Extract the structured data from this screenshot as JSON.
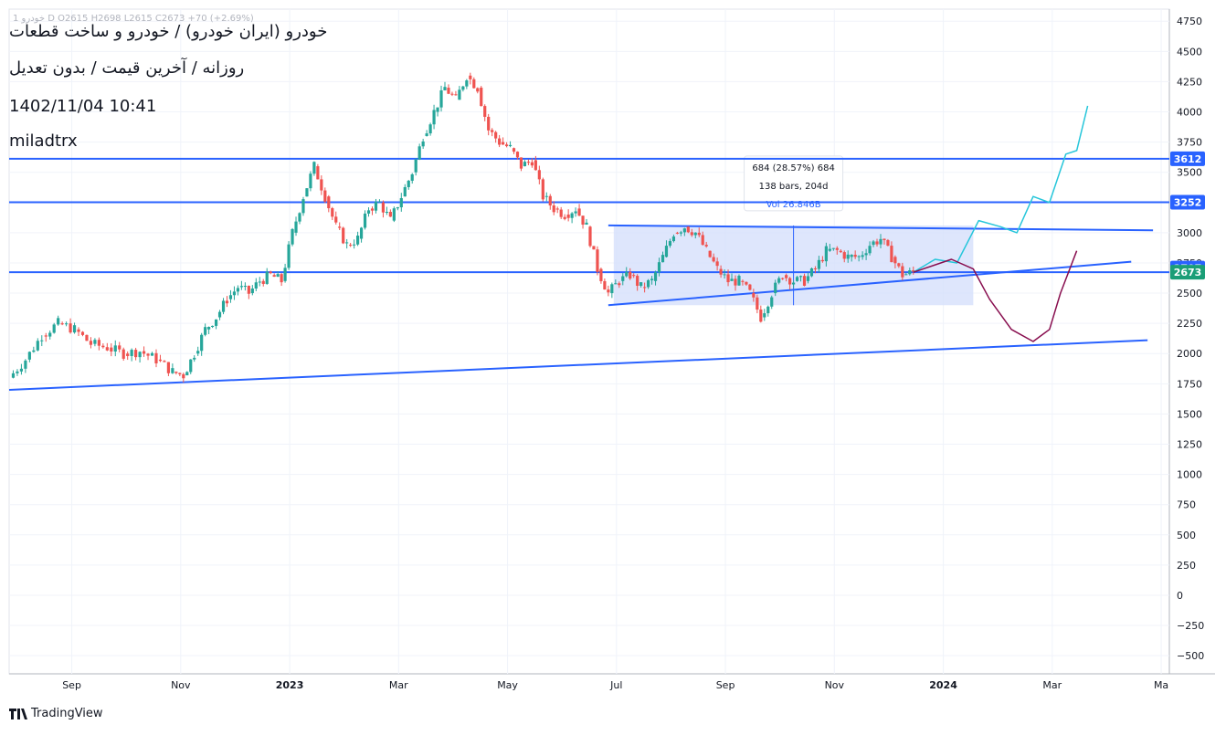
{
  "header": {
    "symbol_line": "خودرو (ایران خودرو) / خودرو و ساخت قطعات",
    "sub_line": "روزانه / آخرین قیمت / بدون تعدیل",
    "date": "1402/11/04 10:41",
    "author": "miladtrx",
    "ohlc": "1 خودرو‌ D  O2615  H2698  L2615  C2673  +70 (+2.69%)"
  },
  "footer": {
    "brand": "TradingView"
  },
  "colors": {
    "up": "#26a69a",
    "down": "#ef5350",
    "level_line": "#2962ff",
    "box_fill": "#d6e0fb",
    "forecast_up": "#26c6da",
    "forecast_down": "#880e4f",
    "price_label": "#2962ff",
    "last_price_label": "#1b9e77"
  },
  "chart_data": {
    "type": "candlestick",
    "title": "",
    "xlabel": "",
    "ylabel": "",
    "ylim": [
      -650,
      4850
    ],
    "y_ticks": [
      "4750",
      "4500",
      "4250",
      "4000",
      "3750",
      "3500",
      "3250",
      "3000",
      "2750",
      "2500",
      "2250",
      "2000",
      "1750",
      "1500",
      "1250",
      "1000",
      "750",
      "500",
      "250",
      "0",
      "−250",
      "−500"
    ],
    "y_tick_values": [
      4750,
      4500,
      4250,
      4000,
      3750,
      3500,
      3250,
      3000,
      2750,
      2500,
      2250,
      2000,
      1750,
      1500,
      1250,
      1000,
      750,
      500,
      250,
      0,
      -250,
      -500
    ],
    "x_ticks": [
      "Sep",
      "Nov",
      "2023",
      "Mar",
      "May",
      "Jul",
      "Sep",
      "Nov",
      "2024",
      "Mar",
      "Ma"
    ],
    "x_tick_bold": [
      false,
      false,
      true,
      false,
      false,
      false,
      false,
      false,
      true,
      false,
      false
    ],
    "x_tick_month_index": [
      1,
      3,
      5,
      7,
      9,
      11,
      13,
      15,
      17,
      19,
      21
    ],
    "x_range_months": [
      0,
      21.3
    ],
    "price_series": [
      [
        0,
        1800
      ],
      [
        0.3,
        1950
      ],
      [
        0.6,
        2150
      ],
      [
        0.9,
        2250
      ],
      [
        1.2,
        2200
      ],
      [
        1.5,
        2080
      ],
      [
        1.8,
        2050
      ],
      [
        2.1,
        2000
      ],
      [
        2.4,
        2020
      ],
      [
        2.7,
        1950
      ],
      [
        3.0,
        1850
      ],
      [
        3.2,
        1820
      ],
      [
        3.4,
        2000
      ],
      [
        3.6,
        2200
      ],
      [
        3.8,
        2300
      ],
      [
        4.0,
        2450
      ],
      [
        4.2,
        2550
      ],
      [
        4.4,
        2500
      ],
      [
        4.6,
        2600
      ],
      [
        4.8,
        2650
      ],
      [
        5.0,
        2600
      ],
      [
        5.2,
        3000
      ],
      [
        5.4,
        3300
      ],
      [
        5.6,
        3550
      ],
      [
        5.8,
        3300
      ],
      [
        6.0,
        3050
      ],
      [
        6.2,
        2900
      ],
      [
        6.4,
        2950
      ],
      [
        6.6,
        3200
      ],
      [
        6.8,
        3250
      ],
      [
        7.0,
        3100
      ],
      [
        7.2,
        3300
      ],
      [
        7.4,
        3500
      ],
      [
        7.6,
        3800
      ],
      [
        7.8,
        4000
      ],
      [
        8.0,
        4200
      ],
      [
        8.2,
        4100
      ],
      [
        8.4,
        4300
      ],
      [
        8.6,
        4200
      ],
      [
        8.8,
        3850
      ],
      [
        9.0,
        3750
      ],
      [
        9.2,
        3700
      ],
      [
        9.4,
        3550
      ],
      [
        9.6,
        3600
      ],
      [
        9.8,
        3300
      ],
      [
        10.0,
        3200
      ],
      [
        10.2,
        3150
      ],
      [
        10.4,
        3200
      ],
      [
        10.6,
        3050
      ],
      [
        10.8,
        2700
      ],
      [
        11.0,
        2500
      ],
      [
        11.2,
        2600
      ],
      [
        11.4,
        2650
      ],
      [
        11.6,
        2550
      ],
      [
        11.8,
        2600
      ],
      [
        12.0,
        2800
      ],
      [
        12.2,
        3000
      ],
      [
        12.4,
        3050
      ],
      [
        12.6,
        3000
      ],
      [
        12.8,
        2850
      ],
      [
        13.0,
        2700
      ],
      [
        13.2,
        2600
      ],
      [
        13.4,
        2600
      ],
      [
        13.6,
        2500
      ],
      [
        13.8,
        2300
      ],
      [
        14.0,
        2500
      ],
      [
        14.2,
        2650
      ],
      [
        14.4,
        2600
      ],
      [
        14.6,
        2600
      ],
      [
        14.8,
        2700
      ],
      [
        15.0,
        2850
      ],
      [
        15.2,
        2850
      ],
      [
        15.4,
        2800
      ],
      [
        15.6,
        2800
      ],
      [
        15.8,
        2900
      ],
      [
        16.0,
        2950
      ],
      [
        16.2,
        2800
      ],
      [
        16.4,
        2650
      ],
      [
        16.6,
        2673
      ]
    ],
    "horizontal_levels": [
      {
        "value": 3612,
        "label": "3612"
      },
      {
        "value": 3252,
        "label": "3252"
      },
      {
        "value": 2673,
        "label": "2673"
      }
    ],
    "right_labels": [
      {
        "value": 3612,
        "label": "3612",
        "color": "#2962ff"
      },
      {
        "value": 3252,
        "label": "3252",
        "color": "#2962ff"
      },
      {
        "value": 2707,
        "label": "2707",
        "color": "#2962ff"
      },
      {
        "value": 2673,
        "label": "2673",
        "color": "#1b9e77"
      }
    ],
    "trendlines": [
      {
        "from": [
          0,
          1700
        ],
        "to": [
          20.9,
          2110
        ]
      },
      {
        "from": [
          11.0,
          2400
        ],
        "to": [
          20.6,
          2760
        ]
      },
      {
        "from": [
          11.0,
          3060
        ],
        "to": [
          21.0,
          3020
        ]
      }
    ],
    "measure_box": {
      "from": [
        11.1,
        2400
      ],
      "to": [
        17.7,
        3060
      ],
      "label_lines": [
        "684 (28.57%) 684",
        "138 bars, 204d",
        "Vol 26.846B"
      ]
    },
    "forecast_up": [
      [
        16.6,
        2673
      ],
      [
        17.0,
        2780
      ],
      [
        17.4,
        2750
      ],
      [
        17.8,
        3100
      ],
      [
        18.2,
        3050
      ],
      [
        18.5,
        3000
      ],
      [
        18.8,
        3300
      ],
      [
        19.1,
        3250
      ],
      [
        19.4,
        3650
      ],
      [
        19.6,
        3680
      ],
      [
        19.8,
        4050
      ]
    ],
    "forecast_down": [
      [
        16.6,
        2673
      ],
      [
        17.3,
        2780
      ],
      [
        17.7,
        2700
      ],
      [
        18.0,
        2450
      ],
      [
        18.4,
        2200
      ],
      [
        18.8,
        2100
      ],
      [
        19.1,
        2200
      ],
      [
        19.3,
        2500
      ],
      [
        19.6,
        2850
      ]
    ]
  }
}
